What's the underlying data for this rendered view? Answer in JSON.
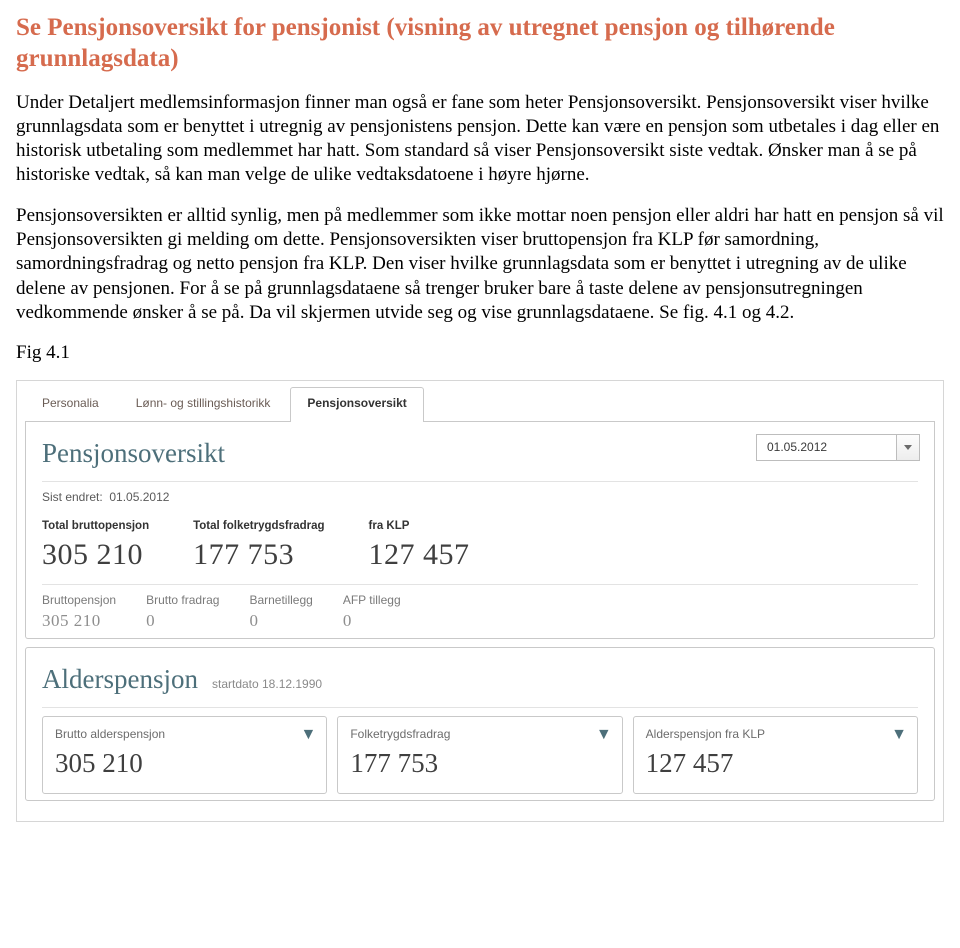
{
  "doc": {
    "heading": "Se Pensjonsoversikt for pensjonist (visning av utregnet pensjon og tilhørende grunnlagsdata)",
    "para1": "Under Detaljert medlemsinformasjon finner man også er fane som heter Pensjonsoversikt. Pensjonsoversikt viser hvilke grunnlagsdata som er benyttet i utregnig av pensjonistens pensjon. Dette kan være en pensjon som utbetales i dag eller en historisk utbetaling som medlemmet har hatt. Som standard så viser Pensjonsoversikt siste vedtak. Ønsker man å se på historiske vedtak, så kan man velge de ulike vedtaksdatoene i høyre hjørne.",
    "para2": "Pensjonsoversikten er alltid synlig, men på medlemmer som ikke mottar noen pensjon eller aldri har hatt en pensjon så vil Pensjonsoversikten gi melding om dette. Pensjonsoversikten viser bruttopensjon fra KLP før samordning, samordningsfradrag og netto pensjon fra KLP. Den viser hvilke grunnlagsdata som er benyttet i utregning av de ulike delene av pensjonen. For å se på grunnlagsdataene så trenger bruker bare å taste delene av pensjonsutregningen vedkommende ønsker å se på. Da vil skjermen utvide seg og vise grunnlagsdataene. Se fig. 4.1 og 4.2.",
    "figLabel": "Fig 4.1"
  },
  "tabs": {
    "personalia": "Personalia",
    "lonn": "Lønn- og stillingshistorikk",
    "pensjon": "Pensjonsoversikt"
  },
  "overview": {
    "title": "Pensjonsoversikt",
    "lastChangedLabel": "Sist endret:",
    "lastChangedValue": "01.05.2012",
    "datePicker": "01.05.2012",
    "totals": [
      {
        "label": "Total bruttopensjon",
        "value": "305 210"
      },
      {
        "label": "Total folketrygdsfradrag",
        "value": "177 753"
      },
      {
        "label": "fra KLP",
        "value": "127 457"
      }
    ],
    "subtotals": [
      {
        "label": "Bruttopensjon",
        "value": "305 210"
      },
      {
        "label": "Brutto fradrag",
        "value": "0"
      },
      {
        "label": "Barnetillegg",
        "value": "0"
      },
      {
        "label": "AFP tillegg",
        "value": "0"
      }
    ]
  },
  "alders": {
    "title": "Alderspensjon",
    "subtitle": "startdato 18.12.1990",
    "cards": [
      {
        "label": "Brutto alderspensjon",
        "value": "305 210"
      },
      {
        "label": "Folketrygdsfradrag",
        "value": "177 753"
      },
      {
        "label": "Alderspensjon fra KLP",
        "value": "127 457"
      }
    ]
  },
  "arrowGlyph": "▼"
}
